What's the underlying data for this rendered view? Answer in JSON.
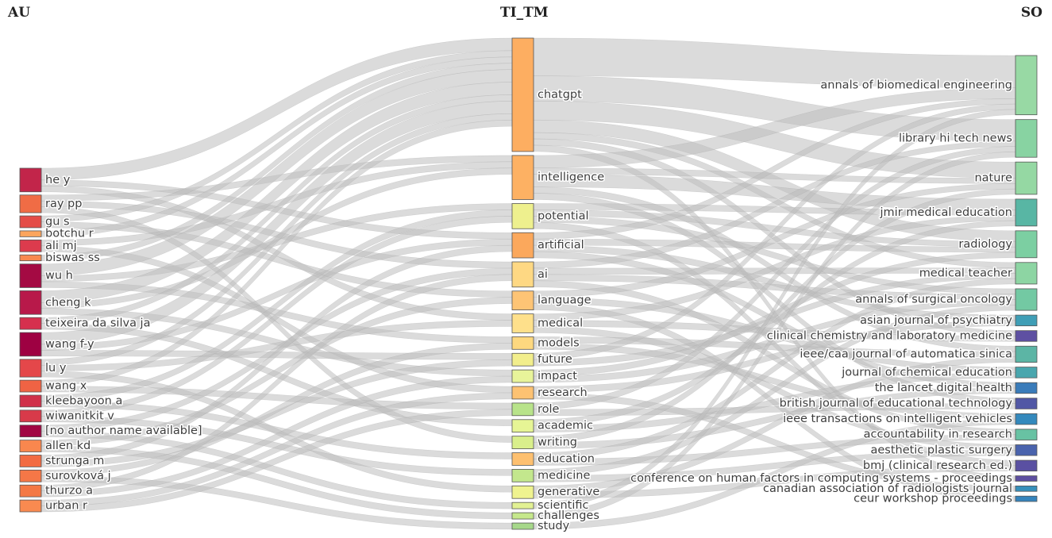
{
  "columns": [
    "AU",
    "TI_TM",
    "SO"
  ],
  "colors": {
    "link": "#bdbdbd",
    "node_border": "#555555"
  },
  "nodes": {
    "AU": [
      {
        "label": "he y",
        "color": "#c2254a"
      },
      {
        "label": "ray pp",
        "color": "#f06c45"
      },
      {
        "label": "gu s",
        "color": "#e44c47"
      },
      {
        "label": "botchu r",
        "color": "#fca55d"
      },
      {
        "label": "ali mj",
        "color": "#dc3b4d"
      },
      {
        "label": "biswas ss",
        "color": "#f88950"
      },
      {
        "label": "wu h",
        "color": "#a40a43"
      },
      {
        "label": "cheng k",
        "color": "#b8194a"
      },
      {
        "label": "teixeira da silva ja",
        "color": "#d6304e"
      },
      {
        "label": "wang f-y",
        "color": "#9e0142"
      },
      {
        "label": "lu y",
        "color": "#e4474a"
      },
      {
        "label": "wang x",
        "color": "#ef6344"
      },
      {
        "label": "kleebayoon a",
        "color": "#d03049"
      },
      {
        "label": "wiwanitkit v",
        "color": "#d83a4a"
      },
      {
        "label": "[no author name available]",
        "color": "#a10643"
      },
      {
        "label": "allen kd",
        "color": "#f9874e"
      },
      {
        "label": "strunga m",
        "color": "#f26b43"
      },
      {
        "label": "surovková j",
        "color": "#f57747"
      },
      {
        "label": "thurzo a",
        "color": "#f47845"
      },
      {
        "label": "urban r",
        "color": "#f98a50"
      }
    ],
    "TI_TM": [
      {
        "label": "chatgpt",
        "color": "#fdae61"
      },
      {
        "label": "intelligence",
        "color": "#fdb163"
      },
      {
        "label": "potential",
        "color": "#eef08e"
      },
      {
        "label": "artificial",
        "color": "#fba85c"
      },
      {
        "label": "ai",
        "color": "#fed883"
      },
      {
        "label": "language",
        "color": "#fdc475"
      },
      {
        "label": "medical",
        "color": "#fee08b"
      },
      {
        "label": "models",
        "color": "#fed87f"
      },
      {
        "label": "future",
        "color": "#f2ee8c"
      },
      {
        "label": "impact",
        "color": "#e8f49a"
      },
      {
        "label": "research",
        "color": "#fdc272"
      },
      {
        "label": "role",
        "color": "#b8e38a"
      },
      {
        "label": "academic",
        "color": "#e6f595"
      },
      {
        "label": "writing",
        "color": "#d9ef8b"
      },
      {
        "label": "education",
        "color": "#fdc070"
      },
      {
        "label": "medicine",
        "color": "#c3e78d"
      },
      {
        "label": "generative",
        "color": "#eff38f"
      },
      {
        "label": "scientific",
        "color": "#e2f193"
      },
      {
        "label": "challenges",
        "color": "#c6e88c"
      },
      {
        "label": "study",
        "color": "#a6d88a"
      }
    ],
    "SO": [
      {
        "label": "annals of biomedical engineering",
        "color": "#98d9a4"
      },
      {
        "label": "library hi tech news",
        "color": "#88d3a2"
      },
      {
        "label": "nature",
        "color": "#95d8a3"
      },
      {
        "label": "jmir medical education",
        "color": "#58b6a4"
      },
      {
        "label": "radiology",
        "color": "#7ccfa2"
      },
      {
        "label": "medical teacher",
        "color": "#8dd5a3"
      },
      {
        "label": "annals of surgical oncology",
        "color": "#73c9a3"
      },
      {
        "label": "asian journal of psychiatry",
        "color": "#3f9eb6"
      },
      {
        "label": "clinical chemistry and laboratory medicine",
        "color": "#5e50a2"
      },
      {
        "label": "ieee/caa journal of automatica sinica",
        "color": "#5cb5a5"
      },
      {
        "label": "journal of chemical education",
        "color": "#49a6ae"
      },
      {
        "label": "the lancet digital health",
        "color": "#3a7cba"
      },
      {
        "label": "british journal of educational technology",
        "color": "#5157a5"
      },
      {
        "label": "ieee transactions on intelligent vehicles",
        "color": "#3489bd"
      },
      {
        "label": "accountability in research",
        "color": "#68c2a3"
      },
      {
        "label": "aesthetic plastic surgery",
        "color": "#4a63ad"
      },
      {
        "label": "bmj (clinical research ed.)",
        "color": "#5a50a2"
      },
      {
        "label": "conference on human factors in computing systems - proceedings",
        "color": "#5d4fa0"
      },
      {
        "label": "canadian association of radiologists journal",
        "color": "#3690bb"
      },
      {
        "label": "ceur workshop proceedings",
        "color": "#3584bc"
      }
    ]
  },
  "links_au_tm": [
    [
      0,
      0,
      2
    ],
    [
      0,
      3,
      1
    ],
    [
      0,
      6,
      1
    ],
    [
      1,
      1,
      1
    ],
    [
      1,
      4,
      1
    ],
    [
      1,
      13,
      1
    ],
    [
      2,
      0,
      1
    ],
    [
      2,
      5,
      1
    ],
    [
      3,
      0,
      1
    ],
    [
      4,
      1,
      1
    ],
    [
      4,
      10,
      1
    ],
    [
      5,
      0,
      1
    ],
    [
      6,
      0,
      2
    ],
    [
      6,
      2,
      1
    ],
    [
      6,
      7,
      1
    ],
    [
      7,
      0,
      2
    ],
    [
      7,
      1,
      1
    ],
    [
      7,
      9,
      1
    ],
    [
      8,
      0,
      1
    ],
    [
      8,
      12,
      1
    ],
    [
      9,
      0,
      2
    ],
    [
      9,
      3,
      1
    ],
    [
      9,
      8,
      1
    ],
    [
      10,
      0,
      1
    ],
    [
      10,
      6,
      1
    ],
    [
      10,
      16,
      1
    ],
    [
      11,
      0,
      1
    ],
    [
      11,
      11,
      1
    ],
    [
      12,
      2,
      1
    ],
    [
      12,
      14,
      1
    ],
    [
      13,
      2,
      1
    ],
    [
      13,
      15,
      1
    ],
    [
      14,
      4,
      1
    ],
    [
      14,
      17,
      1
    ],
    [
      15,
      5,
      1
    ],
    [
      15,
      18,
      1
    ],
    [
      16,
      3,
      1
    ],
    [
      16,
      8,
      1
    ],
    [
      17,
      7,
      1
    ],
    [
      17,
      19,
      1
    ],
    [
      18,
      4,
      1
    ],
    [
      18,
      9,
      1
    ],
    [
      19,
      10,
      1
    ],
    [
      19,
      11,
      1
    ]
  ],
  "links_tm_so": [
    [
      0,
      0,
      6
    ],
    [
      0,
      1,
      4
    ],
    [
      0,
      2,
      3
    ],
    [
      0,
      4,
      2
    ],
    [
      0,
      5,
      1
    ],
    [
      0,
      8,
      1
    ],
    [
      0,
      17,
      1
    ],
    [
      1,
      0,
      2
    ],
    [
      1,
      2,
      1
    ],
    [
      1,
      3,
      2
    ],
    [
      1,
      9,
      1
    ],
    [
      1,
      12,
      1
    ],
    [
      2,
      3,
      1
    ],
    [
      2,
      4,
      1
    ],
    [
      2,
      6,
      1
    ],
    [
      2,
      16,
      1
    ],
    [
      3,
      0,
      1
    ],
    [
      3,
      4,
      1
    ],
    [
      3,
      7,
      1
    ],
    [
      3,
      11,
      1
    ],
    [
      4,
      1,
      1
    ],
    [
      4,
      5,
      1
    ],
    [
      4,
      6,
      1
    ],
    [
      4,
      14,
      1
    ],
    [
      5,
      2,
      1
    ],
    [
      5,
      10,
      1
    ],
    [
      5,
      19,
      1
    ],
    [
      6,
      3,
      1
    ],
    [
      6,
      8,
      1
    ],
    [
      6,
      15,
      1
    ],
    [
      7,
      9,
      1
    ],
    [
      7,
      13,
      1
    ],
    [
      8,
      0,
      1
    ],
    [
      8,
      5,
      1
    ],
    [
      9,
      4,
      1
    ],
    [
      9,
      6,
      1
    ],
    [
      10,
      7,
      1
    ],
    [
      10,
      18,
      1
    ],
    [
      11,
      1,
      1
    ],
    [
      11,
      12,
      1
    ],
    [
      12,
      3,
      1
    ],
    [
      12,
      10,
      1
    ],
    [
      13,
      2,
      1
    ],
    [
      13,
      11,
      1
    ],
    [
      14,
      5,
      1
    ],
    [
      14,
      14,
      1
    ],
    [
      15,
      6,
      1
    ],
    [
      15,
      15,
      1
    ],
    [
      16,
      9,
      1
    ],
    [
      16,
      16,
      1
    ],
    [
      17,
      0,
      1
    ],
    [
      18,
      1,
      1
    ],
    [
      19,
      13,
      1
    ]
  ]
}
